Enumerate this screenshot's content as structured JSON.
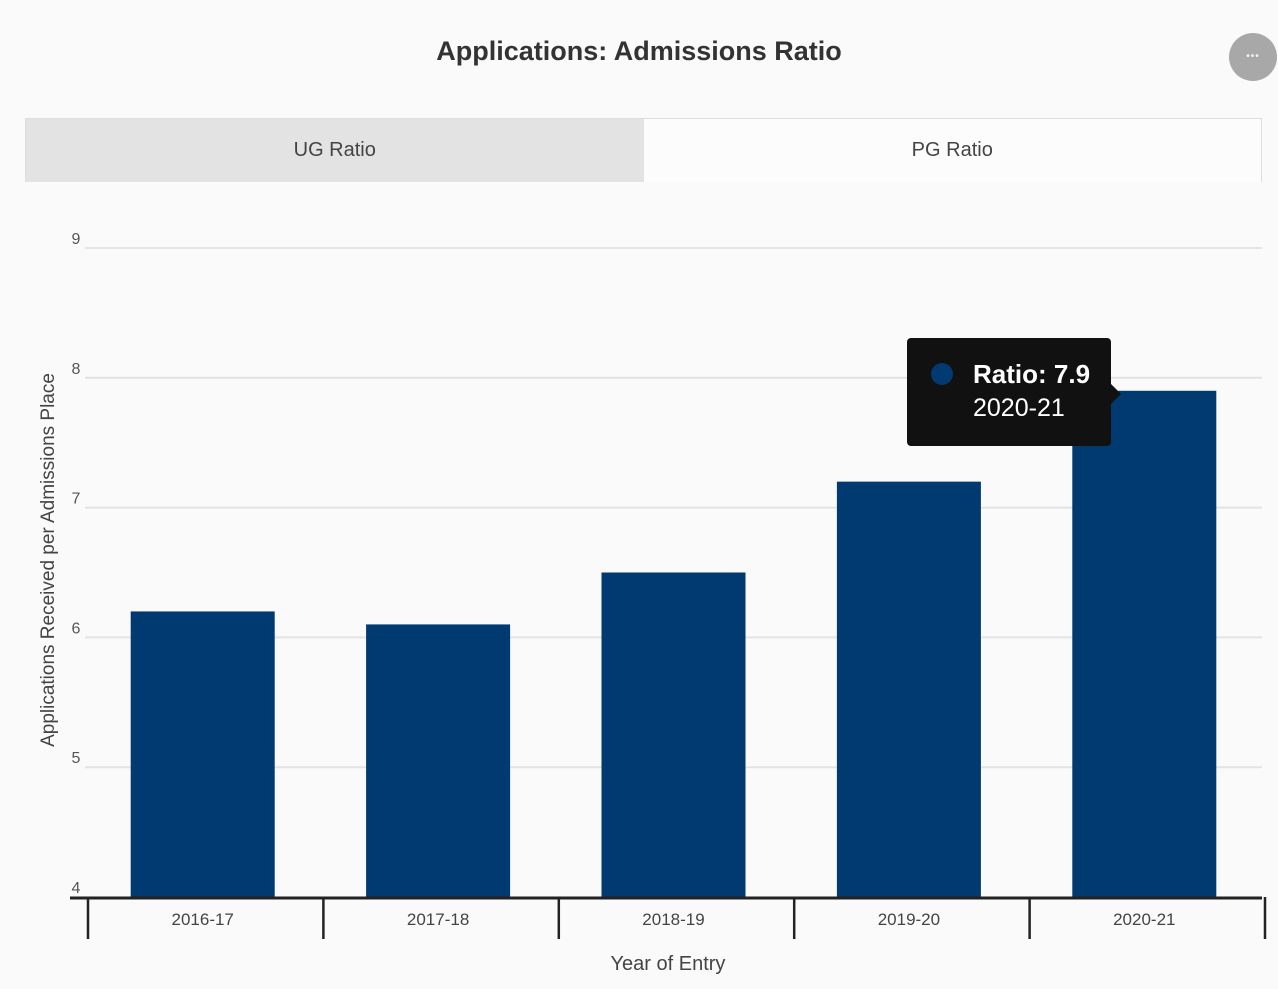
{
  "header": {
    "title": "Applications: Admissions Ratio",
    "menu_glyph": "•••"
  },
  "tabs": [
    {
      "label": "UG Ratio",
      "state": "inactive"
    },
    {
      "label": "PG Ratio",
      "state": "active"
    }
  ],
  "tooltip": {
    "series_label": "Ratio",
    "value_text": "7.9",
    "category": "2020-21",
    "line1": "Ratio: 7.9"
  },
  "colors": {
    "bar": "#003a70",
    "grid": "#e3e3e3",
    "axis": "#222222",
    "tooltip_bg": "#111111"
  },
  "chart_data": {
    "type": "bar",
    "title": "Applications: Admissions Ratio",
    "xlabel": "Year of Entry",
    "ylabel": "Applications Received per Admissions Place",
    "categories": [
      "2016-17",
      "2017-18",
      "2018-19",
      "2019-20",
      "2020-21"
    ],
    "series": [
      {
        "name": "Ratio",
        "values": [
          6.2,
          6.1,
          6.5,
          7.2,
          7.9
        ]
      }
    ],
    "ylim": [
      4,
      9
    ],
    "yticks": [
      4,
      5,
      6,
      7,
      8,
      9
    ],
    "grid": true,
    "legend": "none",
    "highlighted_category": "2020-21"
  }
}
